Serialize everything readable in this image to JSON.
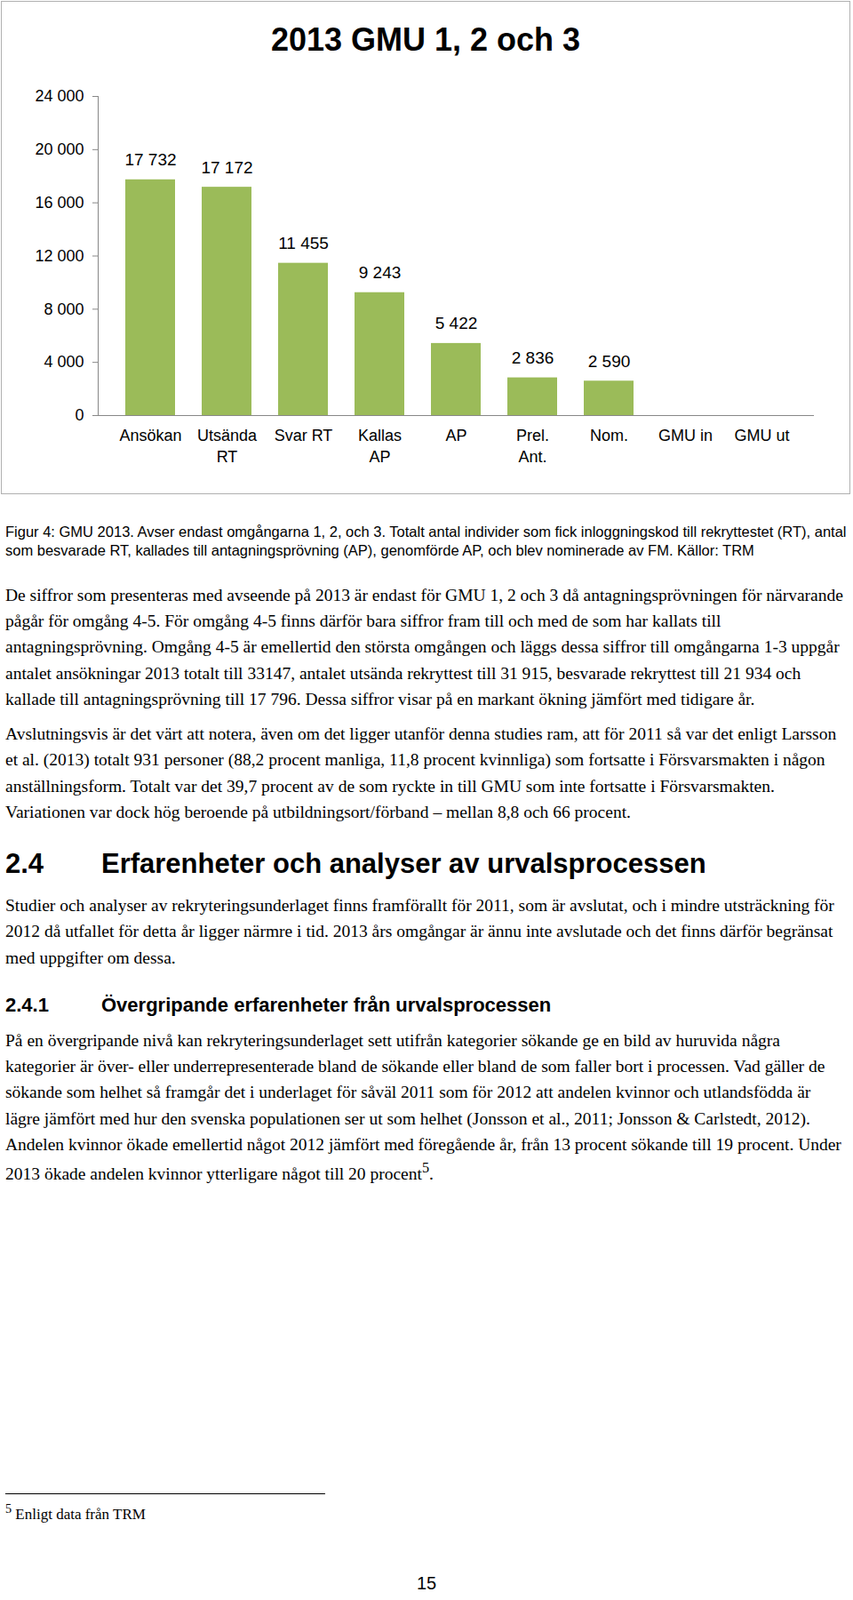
{
  "chart_data": {
    "type": "bar",
    "title": "2013 GMU 1, 2 och 3",
    "categories": [
      "Ansökan",
      "Utsända RT",
      "Svar RT",
      "Kallas AP",
      "AP",
      "Prel. Ant.",
      "Nom.",
      "GMU in",
      "GMU ut"
    ],
    "values": [
      17732,
      17172,
      11455,
      9243,
      5422,
      2836,
      2590,
      null,
      null
    ],
    "value_labels": [
      "17 732",
      "17 172",
      "11 455",
      "9 243",
      "5 422",
      "2 836",
      "2 590",
      null,
      null
    ],
    "data_labels": true,
    "color": "#9bbb59",
    "ylim": [
      0,
      24000
    ],
    "yticks": [
      0,
      {
        "value": 4000,
        "label": "4 000"
      },
      {
        "value": 8000,
        "label": "8 000"
      },
      {
        "value": 12000,
        "label": "12 000"
      },
      {
        "value": 16000,
        "label": "16 000"
      },
      {
        "value": 20000,
        "label": "20 000"
      },
      {
        "value": 24000,
        "label": "24 000"
      }
    ],
    "grid": false
  },
  "document": {
    "figure_caption": "Figur 4: GMU 2013. Avser endast omgångarna 1, 2, och 3. Totalt antal individer som fick inloggningskod till rekryttestet (RT), antal som besvarade RT, kallades till antagningsprövning (AP), genomförde AP, och blev nominerade av FM. Källor: TRM",
    "paragraphs": [
      "De siffror som presenteras med avseende på 2013 är endast för GMU 1, 2 och 3 då antagningsprövningen för närvarande pågår för omgång 4-5. För omgång 4-5 finns därför bara siffror fram till och med de som har kallats till antagningsprövning. Omgång 4-5 är emellertid den största omgången och läggs dessa siffror till omgångarna 1-3 uppgår antalet ansökningar 2013 totalt till 33147, antalet utsända rekryttest till 31 915, besvarade rekryttest till 21 934 och kallade till antagningsprövning till 17 796. Dessa siffror visar på en markant ökning jämfört med tidigare år.",
      "Avslutningsvis är det värt att notera, även om det ligger utanför denna studies ram, att för 2011 så var det enligt Larsson et al. (2013) totalt 931 personer (88,2 procent manliga, 11,8 procent kvinnliga) som fortsatte i Försvarsmakten i någon anställningsform. Totalt var det 39,7 procent av de som ryckte in till GMU som inte fortsatte i Försvarsmakten. Variationen var dock hög beroende på utbildningsort/förband – mellan 8,8 och 66 procent."
    ],
    "sections": [
      {
        "number": "2.4",
        "title": "Erfarenheter och analyser av urvalsprocessen",
        "paragraphs": [
          "Studier och analyser av rekryteringsunderlaget finns framförallt för 2011, som är avslutat, och i mindre utsträckning för 2012 då utfallet för detta år ligger närmre i tid. 2013 års omgångar är ännu inte avslutade och det finns därför begränsat med uppgifter om dessa."
        ]
      },
      {
        "number": "2.4.1",
        "title": "Övergripande erfarenheter från urvalsprocessen",
        "paragraphs": [
          "På en övergripande nivå kan rekryteringsunderlaget sett utifrån kategorier sökande ge en bild av huruvida några kategorier är över- eller underrepresenterade bland de sökande eller bland de som faller bort i processen. Vad gäller de sökande som helhet så framgår det i underlaget för såväl 2011 som för 2012 att andelen kvinnor och utlandsfödda är lägre jämfört med hur den svenska populationen ser ut som helhet (Jonsson et al., 2011; Jonsson & Carlstedt, 2012). Andelen kvinnor ökade emellertid något 2012 jämfört med föregående år, från 13 procent sökande till 19 procent. Under 2013 ökade andelen kvinnor ytterligare något till 20 procent"
        ],
        "footnote_mark": "5",
        "text_after_mark": "."
      }
    ],
    "footnote": {
      "mark": "5",
      "text": "Enligt data från TRM"
    },
    "page_number": "15"
  }
}
